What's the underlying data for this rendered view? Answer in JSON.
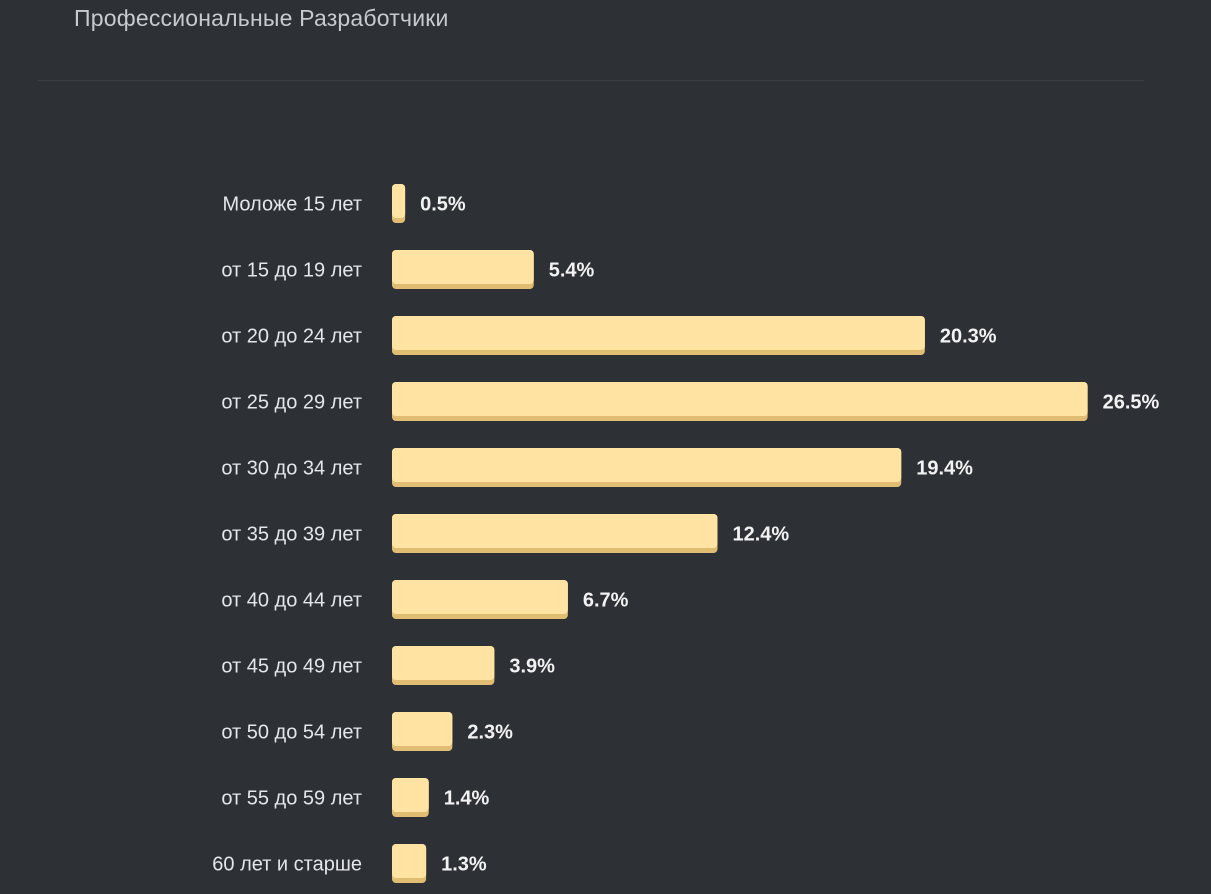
{
  "header": {
    "title": "Профессиональные Разработчики"
  },
  "colors": {
    "background": "#2d3035",
    "bar": "#ffe3a3",
    "bar_shadow": "#e0bd73"
  },
  "chart_data": {
    "type": "bar",
    "orientation": "horizontal",
    "categories": [
      "Моложе 15 лет",
      "от 15 до 19 лет",
      "от 20 до 24 лет",
      "от 25 до 29 лет",
      "от 30 до 34 лет",
      "от 35 до 39 лет",
      "от 40 до 44 лет",
      "от 45 до 49 лет",
      "от 50 до 54 лет",
      "от 55 до 59 лет",
      "60 лет и старше"
    ],
    "values": [
      0.5,
      5.4,
      20.3,
      26.5,
      19.4,
      12.4,
      6.7,
      3.9,
      2.3,
      1.4,
      1.3
    ],
    "value_labels": [
      "0.5%",
      "5.4%",
      "20.3%",
      "26.5%",
      "19.4%",
      "12.4%",
      "6.7%",
      "3.9%",
      "2.3%",
      "1.4%",
      "1.3%"
    ],
    "unit": "%",
    "grid": false,
    "legend": "none"
  }
}
